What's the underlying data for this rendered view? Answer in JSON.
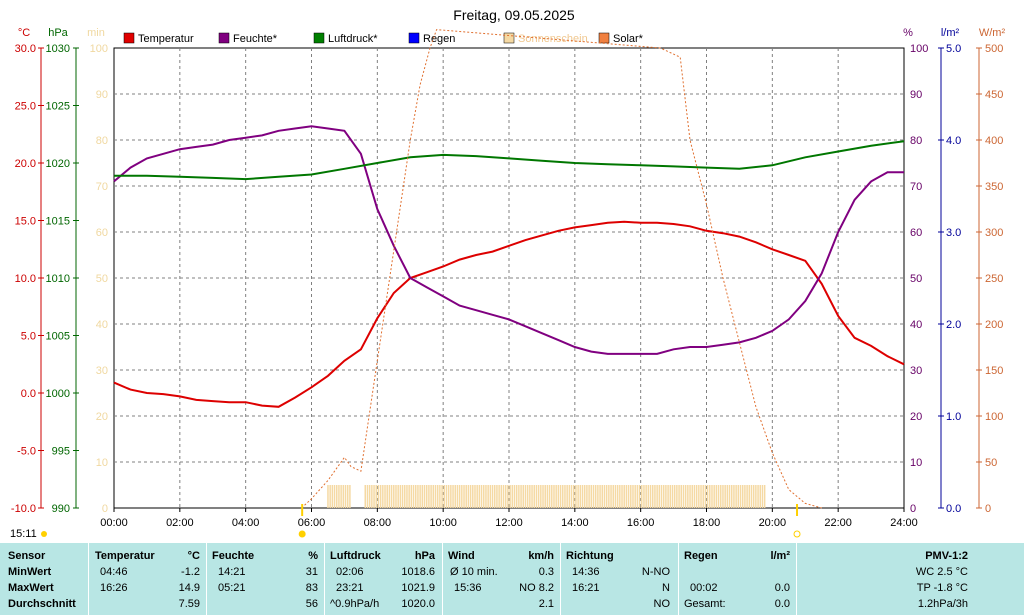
{
  "chart_data": {
    "type": "line",
    "title": "Freitag, 09.05.2025",
    "time_label": "15:11",
    "x_ticks": [
      "00:00",
      "02:00",
      "04:00",
      "06:00",
      "08:00",
      "10:00",
      "12:00",
      "14:00",
      "16:00",
      "18:00",
      "20:00",
      "22:00",
      "24:00"
    ],
    "axes": {
      "temp": {
        "unit": "°C",
        "min": -10,
        "max": 30,
        "ticks": [
          "30.0",
          "25.0",
          "20.0",
          "15.0",
          "10.0",
          "5.0",
          "0.0",
          "-5.0",
          "-10.0"
        ],
        "color": "#cc0000"
      },
      "pressure": {
        "unit": "hPa",
        "min": 990,
        "max": 1030,
        "ticks": [
          "1030",
          "1025",
          "1020",
          "1015",
          "1010",
          "1005",
          "1000",
          "995",
          "990"
        ],
        "color": "#006600"
      },
      "sunshine": {
        "unit": "min",
        "min": 0,
        "max": 100,
        "ticks": [
          "100",
          "90",
          "80",
          "70",
          "60",
          "50",
          "40",
          "30",
          "20",
          "10",
          "0"
        ],
        "color": "#f0d8a0"
      },
      "humidity": {
        "unit": "%",
        "min": 0,
        "max": 100,
        "ticks": [
          "100",
          "90",
          "80",
          "70",
          "60",
          "50",
          "40",
          "30",
          "20",
          "10",
          "0"
        ],
        "color": "#660066"
      },
      "rain": {
        "unit": "l/m²",
        "min": 0,
        "max": 5,
        "ticks": [
          "5.0",
          "4.0",
          "3.0",
          "2.0",
          "1.0",
          "0.0"
        ],
        "color": "#000099"
      },
      "solar": {
        "unit": "W/m²",
        "min": 0,
        "max": 500,
        "ticks": [
          "500",
          "450",
          "400",
          "350",
          "300",
          "250",
          "200",
          "150",
          "100",
          "50",
          "0"
        ],
        "color": "#cc6633"
      }
    },
    "legend": [
      {
        "label": "Temperatur",
        "color": "#e00000"
      },
      {
        "label": "Feuchte*",
        "color": "#800080"
      },
      {
        "label": "Luftdruck*",
        "color": "#008000"
      },
      {
        "label": "Regen",
        "color": "#0000ff"
      },
      {
        "label": "Sonnenschein",
        "color": "#f5d9a3"
      },
      {
        "label": "Solar*",
        "color": "#f08040"
      }
    ],
    "series": [
      {
        "name": "Temperatur",
        "axis": "temp",
        "color": "#dd0000",
        "x": [
          0,
          0.5,
          1,
          1.5,
          2,
          2.5,
          3,
          3.5,
          4,
          4.5,
          5,
          5.5,
          6,
          6.5,
          7,
          7.5,
          8,
          8.5,
          9,
          9.5,
          10,
          10.5,
          11,
          11.5,
          12,
          12.5,
          13,
          13.5,
          14,
          14.5,
          15,
          15.5,
          16,
          16.5,
          17,
          17.5,
          18,
          18.5,
          19,
          19.5,
          20,
          20.5,
          21,
          21.5,
          22,
          22.5,
          23,
          23.5,
          24
        ],
        "y": [
          0.9,
          0.3,
          0,
          -0.1,
          -0.3,
          -0.6,
          -0.7,
          -0.8,
          -0.8,
          -1.1,
          -1.2,
          -0.4,
          0.5,
          1.5,
          2.8,
          3.8,
          6.5,
          8.7,
          10,
          10.5,
          11,
          11.6,
          12,
          12.3,
          12.8,
          13.3,
          13.7,
          14.1,
          14.4,
          14.6,
          14.8,
          14.9,
          14.8,
          14.8,
          14.7,
          14.5,
          14.1,
          13.9,
          13.6,
          13.1,
          12.5,
          12,
          11.5,
          9.5,
          6.7,
          4.8,
          4.1,
          3.2,
          2.5
        ]
      },
      {
        "name": "Feuchte*",
        "axis": "humidity",
        "color": "#800080",
        "x": [
          0,
          0.5,
          1,
          1.5,
          2,
          2.5,
          3,
          3.5,
          4,
          4.5,
          5,
          5.5,
          6,
          6.5,
          7,
          7.5,
          8,
          8.5,
          9,
          9.5,
          10,
          10.5,
          11,
          11.5,
          12,
          12.5,
          13,
          13.5,
          14,
          14.5,
          15,
          15.5,
          16,
          16.5,
          17,
          17.5,
          18,
          18.5,
          19,
          19.5,
          20,
          20.5,
          21,
          21.5,
          22,
          22.5,
          23,
          23.5,
          24
        ],
        "y": [
          71,
          74,
          76,
          77,
          78,
          78.5,
          79,
          80,
          80.5,
          81,
          82,
          82.5,
          83,
          82.5,
          82,
          77,
          65,
          57,
          50,
          48,
          46,
          44,
          43,
          42,
          41,
          39.5,
          38,
          36.5,
          35,
          34,
          33.5,
          33.5,
          33.5,
          33.5,
          34.5,
          35,
          35,
          35.5,
          36,
          37,
          38.5,
          41,
          45,
          51,
          60,
          67,
          71,
          73,
          73
        ]
      },
      {
        "name": "Luftdruck*",
        "axis": "pressure",
        "color": "#007700",
        "x": [
          0,
          1,
          2,
          3,
          4,
          5,
          6,
          7,
          8,
          9,
          10,
          11,
          12,
          13,
          14,
          15,
          16,
          17,
          18,
          19,
          20,
          21,
          22,
          23,
          24
        ],
        "y": [
          1018.9,
          1018.9,
          1018.8,
          1018.7,
          1018.6,
          1018.8,
          1019,
          1019.5,
          1020,
          1020.5,
          1020.7,
          1020.6,
          1020.4,
          1020.2,
          1020,
          1019.9,
          1019.8,
          1019.7,
          1019.6,
          1019.5,
          1019.8,
          1020.5,
          1021,
          1021.5,
          1021.9
        ]
      },
      {
        "name": "Solar*",
        "axis": "solar",
        "color": "#e07030",
        "x": [
          5.7,
          6,
          6.5,
          7,
          7.2,
          7.5,
          8,
          8.5,
          9,
          9.3,
          9.6,
          9.8,
          16.6,
          17.2,
          17.5,
          18,
          18.5,
          19,
          19.5,
          20,
          20.5,
          21,
          21.5
        ],
        "y": [
          0,
          10,
          30,
          55,
          45,
          40,
          160,
          280,
          400,
          460,
          500,
          520,
          500,
          490,
          400,
          330,
          250,
          180,
          110,
          60,
          20,
          5,
          0
        ]
      }
    ],
    "sunshine_bars": {
      "name": "Sonnenschein",
      "axis": "sunshine",
      "color": "#f5d9a3",
      "x_start": 6.5,
      "x_end": 19.8,
      "gap": [
        7.2,
        7.6
      ],
      "value": 5
    },
    "markers": {
      "sunrise": "05:43",
      "sunset": "20:45"
    }
  },
  "table": {
    "headers": {
      "sensor": "Sensor",
      "temp": "Temperatur",
      "temp_unit": "°C",
      "hum": "Feuchte",
      "hum_unit": "%",
      "pres": "Luftdruck",
      "pres_unit": "hPa",
      "wind": "Wind",
      "wind_unit": "km/h",
      "dir": "Richtung",
      "rain": "Regen",
      "rain_unit": "l/m²",
      "pmv": "PMV-1:2"
    },
    "rows": [
      {
        "label": "MinWert",
        "temp_time": "04:46",
        "temp_val": "-1.2",
        "hum_time": "14:21",
        "hum_val": "31",
        "pres_time": "02:06",
        "pres_val": "1018.6",
        "wind_time": "Ø 10 min.",
        "wind_val": "0.3",
        "dir_time": "14:36",
        "dir_val": "N-NO",
        "rain_time": "",
        "rain_val": "",
        "pmv": "WC 2.5 °C"
      },
      {
        "label": "MaxWert",
        "temp_time": "16:26",
        "temp_val": "14.9",
        "hum_time": "05:21",
        "hum_val": "83",
        "pres_time": "23:21",
        "pres_val": "1021.9",
        "wind_time": "15:36",
        "wind_val": "NO 8.2",
        "dir_time": "16:21",
        "dir_val": "N",
        "rain_time": "00:02",
        "rain_val": "0.0",
        "pmv": "TP -1.8 °C"
      },
      {
        "label": "Durchschnitt",
        "temp_time": "",
        "temp_val": "7.59",
        "hum_time": "",
        "hum_val": "56",
        "pres_time": "^0.9hPa/h",
        "pres_val": "1020.0",
        "wind_time": "",
        "wind_val": "2.1",
        "dir_time": "",
        "dir_val": "NO",
        "rain_time": "Gesamt:",
        "rain_val": "0.0",
        "pmv": "1.2hPa/3h"
      }
    ]
  }
}
